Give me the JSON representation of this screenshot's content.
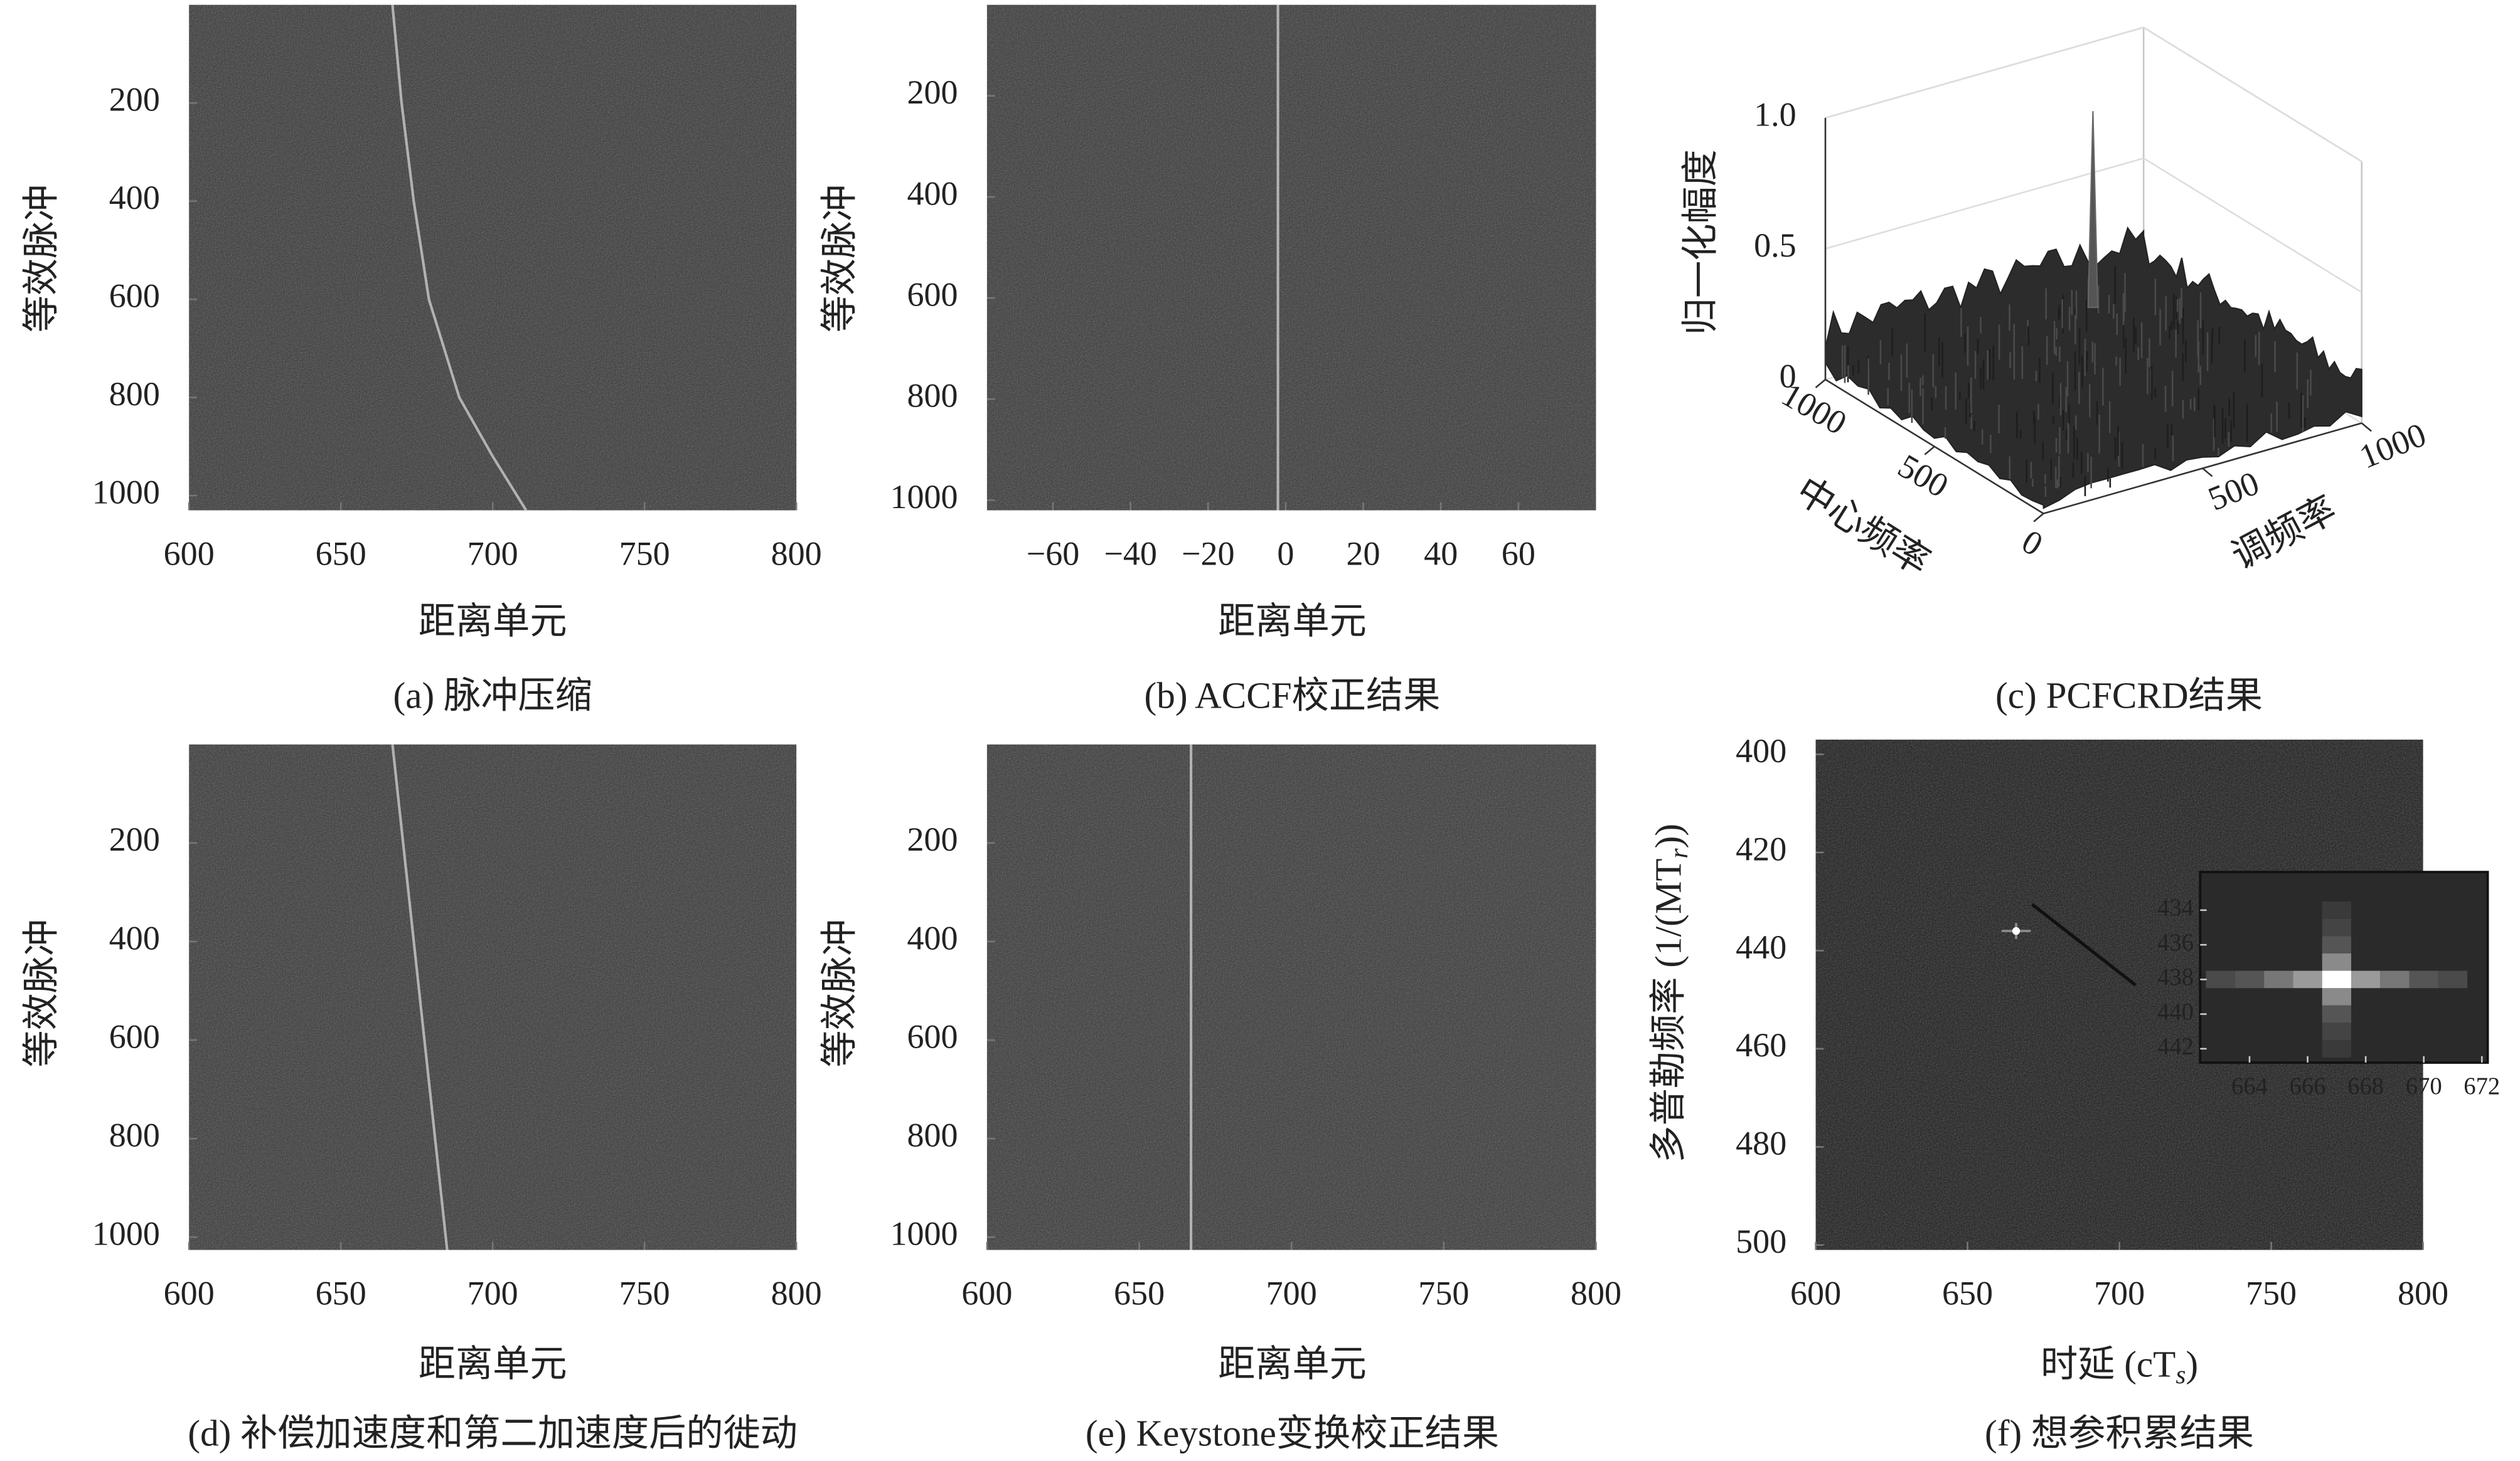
{
  "chart_data": [
    {
      "type": "heatmap-track",
      "caption": "(a) 脉冲压缩",
      "xlabel": "距离单元",
      "ylabel": "等效脉冲",
      "xlim": [
        600,
        800
      ],
      "ylim": [
        0,
        1030
      ],
      "xticks": [
        600,
        650,
        700,
        750,
        800
      ],
      "yticks": [
        200,
        400,
        600,
        800,
        1000
      ],
      "y_reversed": true,
      "track": {
        "x": [
          667,
          670,
          674,
          679,
          689,
          700,
          711
        ],
        "y": [
          0,
          200,
          400,
          600,
          800,
          920,
          1030
        ]
      }
    },
    {
      "type": "heatmap-track",
      "caption": "(b) ACCF校正结果",
      "xlabel": "距离单元",
      "ylabel": "等效脉冲",
      "xlim": [
        -77,
        80
      ],
      "ylim": [
        20,
        1020
      ],
      "xticks": [
        {
          "value": -60,
          "label": "−60"
        },
        {
          "value": -40,
          "label": "−40"
        },
        {
          "value": -20,
          "label": "−20"
        },
        0,
        20,
        40,
        60
      ],
      "yticks": [
        200,
        400,
        600,
        800,
        1000
      ],
      "y_reversed": true,
      "track": {
        "x": [
          -2,
          -2
        ],
        "y": [
          20,
          1020
        ]
      }
    },
    {
      "type": "surface3d",
      "caption": "(c) PCFCRD结果",
      "xlabel": "中心频率",
      "ylabel": "调频率",
      "zlabel": "归一化幅度",
      "xlim": [
        0,
        1000
      ],
      "ylim": [
        0,
        1000
      ],
      "zlim": [
        0,
        1
      ],
      "xticks": [
        0,
        500,
        1000
      ],
      "yticks": [
        500,
        1000
      ],
      "zticks": [
        0,
        0.5,
        {
          "value": 1,
          "label": "1.0"
        }
      ],
      "peak": {
        "x": 780,
        "y": 690,
        "z": 0.9
      }
    },
    {
      "type": "heatmap-track",
      "caption": "(d) 补偿加速度和第二加速度后的徙动",
      "xlabel": "距离单元",
      "ylabel": "等效脉冲",
      "xlim": [
        600,
        800
      ],
      "ylim": [
        0,
        1026
      ],
      "xticks": [
        600,
        650,
        700,
        750,
        800
      ],
      "yticks": [
        200,
        400,
        600,
        800,
        1000
      ],
      "y_reversed": true,
      "track": {
        "x": [
          667,
          685
        ],
        "y": [
          0,
          1026
        ]
      }
    },
    {
      "type": "heatmap-track",
      "caption": "(e) Keystone变换校正结果",
      "xlabel": "距离单元",
      "ylabel": "等效脉冲",
      "xlim": [
        600,
        800
      ],
      "ylim": [
        0,
        1026
      ],
      "xticks": [
        600,
        650,
        700,
        750,
        800
      ],
      "yticks": [
        200,
        400,
        600,
        800,
        1000
      ],
      "y_reversed": true,
      "track": {
        "x": [
          667,
          667
        ],
        "y": [
          0,
          1026
        ]
      }
    },
    {
      "type": "heatmap-peak",
      "caption": "(f) 想参积累结果",
      "xlabel": {
        "text": "时延 (cT",
        "sub": "s",
        "tail": ")"
      },
      "ylabel": {
        "text": "多普勒频率 (1/(MT",
        "sub": "r",
        "tail": "))"
      },
      "xlim": [
        600,
        800
      ],
      "ylim": [
        397,
        501
      ],
      "xticks": [
        600,
        650,
        700,
        750,
        800
      ],
      "yticks": [
        400,
        420,
        440,
        460,
        480,
        500
      ],
      "y_reversed": true,
      "peak": {
        "x": 666,
        "y": 436
      },
      "inset": {
        "xlim": [
          662.3,
          672.2
        ],
        "ylim": [
          431.8,
          442.8
        ],
        "xticks": [
          664,
          666,
          668,
          670,
          672
        ],
        "yticks": [
          434,
          436,
          438,
          440,
          442
        ],
        "peak": {
          "x": 667,
          "y": 438
        }
      }
    }
  ]
}
